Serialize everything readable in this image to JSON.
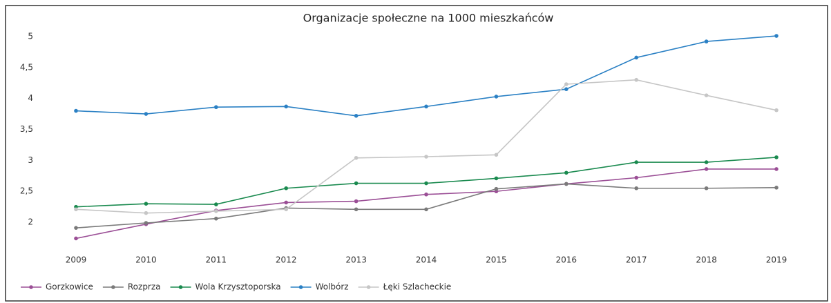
{
  "chart_data": {
    "type": "line",
    "title": "Organizacje społeczne na 1000 mieszkańców",
    "categories": [
      "2009",
      "2010",
      "2011",
      "2012",
      "2013",
      "2014",
      "2015",
      "2016",
      "2017",
      "2018",
      "2019"
    ],
    "series": [
      {
        "name": "Gorzkowice",
        "color": "#9b4f96",
        "values": [
          1.74,
          1.97,
          2.19,
          2.32,
          2.34,
          2.45,
          2.5,
          2.62,
          2.72,
          2.86,
          2.86
        ]
      },
      {
        "name": "Rozprza",
        "color": "#7a7a7a",
        "values": [
          1.91,
          1.99,
          2.06,
          2.23,
          2.21,
          2.21,
          2.54,
          2.62,
          2.55,
          2.55,
          2.56
        ]
      },
      {
        "name": "Wola Krzysztoporska",
        "color": "#1a8a4f",
        "values": [
          2.25,
          2.3,
          2.29,
          2.55,
          2.63,
          2.63,
          2.71,
          2.8,
          2.97,
          2.97,
          3.05
        ]
      },
      {
        "name": "Wolbórz",
        "color": "#2a80c4",
        "values": [
          3.8,
          3.75,
          3.86,
          3.87,
          3.72,
          3.87,
          4.03,
          4.15,
          4.66,
          4.92,
          5.01
        ]
      },
      {
        "name": "Łęki Szlacheckie",
        "color": "#c6c6c6",
        "values": [
          2.21,
          2.15,
          2.18,
          2.21,
          3.04,
          3.06,
          3.09,
          4.23,
          4.3,
          4.05,
          3.81
        ]
      }
    ],
    "ylim": [
      1.6,
      5.3
    ],
    "yticks": [
      2,
      {
        "value": 2.5,
        "label": "2,5"
      },
      3,
      {
        "value": 3.5,
        "label": "3,5"
      },
      4,
      {
        "value": 4.5,
        "label": "4,5"
      },
      5
    ],
    "legend": "bottom"
  }
}
